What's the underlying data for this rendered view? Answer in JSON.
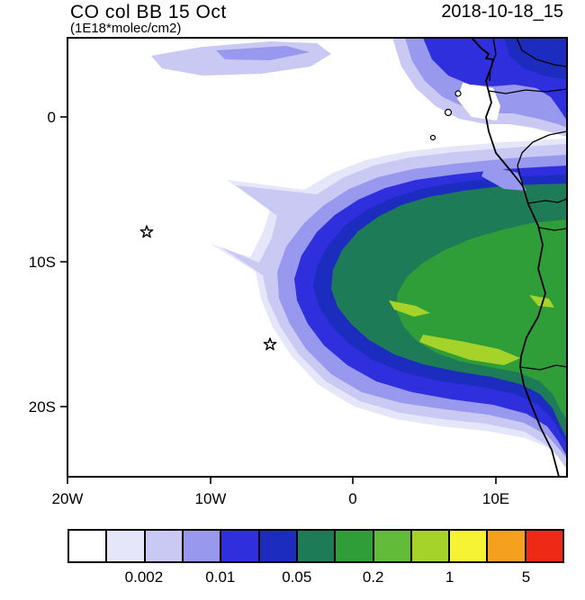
{
  "header": {
    "title": "CO col BB 15 Oct",
    "subtitle": "(1E18*molec/cm2)",
    "datetime": "2018-10-18_15"
  },
  "chart_data": {
    "type": "heatmap",
    "variant": "filled-contour-geographic-map",
    "title": "CO col BB 15 Oct",
    "units": "1E18*molec/cm2",
    "timestamp": "2018-10-18_15",
    "x_axis": {
      "ticks": [
        "20W",
        "10W",
        "0",
        "10E"
      ],
      "range_deg_lon": [
        -20,
        15
      ]
    },
    "y_axis": {
      "ticks": [
        "0",
        "10S",
        "20S"
      ],
      "range_deg_lat": [
        -24.8,
        5.5
      ]
    },
    "colorbar": {
      "levels": [
        0.001,
        0.002,
        0.005,
        0.01,
        0.02,
        0.05,
        0.1,
        0.2,
        0.5,
        1,
        2,
        5
      ],
      "colors": [
        "#ffffff",
        "#e6e6fb",
        "#c9c9f4",
        "#9898ee",
        "#2f2fdd",
        "#1b2cbe",
        "#1e7b57",
        "#2f9e38",
        "#63bb3a",
        "#a6d32a",
        "#f6f234",
        "#f6a01f",
        "#ee2a16"
      ],
      "tick_labels": [
        "0.002",
        "0.01",
        "0.05",
        "0.2",
        "1",
        "5"
      ],
      "tick_boundary_indices": [
        2,
        4,
        6,
        8,
        10,
        12
      ]
    },
    "markers": [
      {
        "symbol": "star",
        "approx_position": "14W, 8S"
      },
      {
        "symbol": "star",
        "approx_position": "6W, 16S"
      }
    ],
    "content_summary": "CO column plume (biomass burning) extending west from the Angola/Congo coast over the South Atlantic; highest values (green/yellow-green) over Angola, secondary maximum (dark blue) near the equator over Congo/DRC; African coastline with country borders and two star markers over the ocean."
  }
}
